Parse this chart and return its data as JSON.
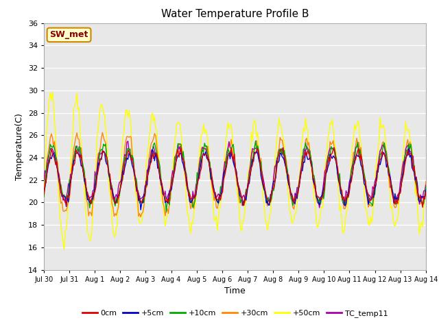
{
  "title": "Water Temperature Profile B",
  "xlabel": "Time",
  "ylabel": "Temperature(C)",
  "ylim": [
    14,
    36
  ],
  "yticks": [
    14,
    16,
    18,
    20,
    22,
    24,
    26,
    28,
    30,
    32,
    34,
    36
  ],
  "plot_bg_color": "#e8e8e8",
  "grid_color": "#ffffff",
  "series_colors": {
    "0cm": "#dd0000",
    "+5cm": "#0000cc",
    "+10cm": "#00aa00",
    "+30cm": "#ff8800",
    "+50cm": "#ffff00",
    "TC_temp11": "#aa00aa"
  },
  "sw_met_label": "SW_met",
  "sw_met_bg": "#ffffcc",
  "sw_met_border": "#cc8800",
  "sw_met_text_color": "#880000",
  "xtick_labels": [
    "Jul 30",
    "Jul 31",
    "Aug 1",
    "Aug 2",
    "Aug 3",
    "Aug 4",
    "Aug 5",
    "Aug 6",
    "Aug 7",
    "Aug 8",
    "Aug 9",
    "Aug 10",
    "Aug 11",
    "Aug 12",
    "Aug 13",
    "Aug 14"
  ],
  "legend_labels": [
    "0cm",
    "+5cm",
    "+10cm",
    "+30cm",
    "+50cm",
    "TC_temp11"
  ]
}
